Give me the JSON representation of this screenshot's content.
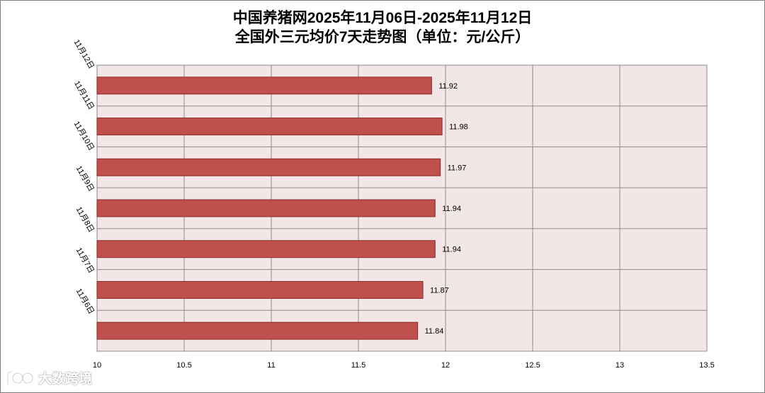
{
  "chart_data": {
    "type": "bar",
    "orientation": "horizontal",
    "title": "中国养猪网2025年11月06日-2025年11月12日",
    "subtitle": "全国外三元均价7天走势图（单位：元/公斤）",
    "categories": [
      "11月12日",
      "11月11日",
      "11月10日",
      "11月9日",
      "11月8日",
      "11月7日",
      "11月6日"
    ],
    "values": [
      11.92,
      11.98,
      11.97,
      11.94,
      11.94,
      11.87,
      11.84
    ],
    "data_labels": [
      "11.92",
      "11.98",
      "11.97",
      "11.94",
      "11.94",
      "11.87",
      "11.84"
    ],
    "xlim": [
      10,
      13.5
    ],
    "x_ticks": [
      "10",
      "10.5",
      "11",
      "11.5",
      "12",
      "12.5",
      "13",
      "13.5"
    ],
    "grid": true,
    "legend": "none",
    "bar_color": "#c0504d",
    "plot_background": "#f2e6e6"
  },
  "watermark": {
    "text": "大数跨境",
    "icon": "logo-icon"
  }
}
